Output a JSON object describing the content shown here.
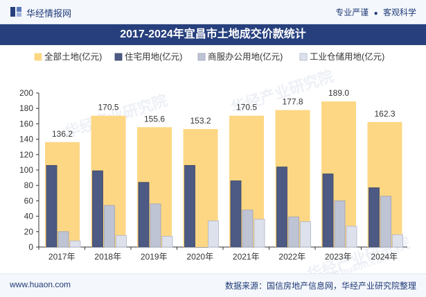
{
  "header": {
    "brand": "华经情报网",
    "tags": [
      "专业严谨",
      "客观科学"
    ]
  },
  "footer": {
    "website": "www.huaon.com",
    "source": "数据来源：国信房地产信息网，华经产业研究院整理"
  },
  "watermark": {
    "text": "华经产业研究院",
    "url": "www.huaon.com"
  },
  "colors": {
    "brand_blue": "#27407d",
    "total": "#fdd784",
    "residential": "#4d5a83",
    "commercial": "#bfc4d5",
    "industrial": "#dde1ec"
  },
  "chart_data": {
    "type": "bar",
    "title": "2017-2024年宜昌市土地成交价款统计",
    "categories": [
      "2017年",
      "2018年",
      "2019年",
      "2020年",
      "2021年",
      "2022年",
      "2023年",
      "2024年"
    ],
    "series": [
      {
        "name": "全部土地(亿元)",
        "values": [
          136.2,
          170.5,
          155.6,
          153.2,
          170.5,
          177.8,
          189.0,
          162.3
        ],
        "labels": [
          "136.2",
          "170.5",
          "155.6",
          "153.2",
          "170.5",
          "177.8",
          "189.0",
          "162.3"
        ]
      },
      {
        "name": "住宅用地(亿元)",
        "values": [
          106,
          99,
          84,
          106,
          86,
          104,
          95,
          77
        ]
      },
      {
        "name": "商服办公用地(亿元)",
        "values": [
          20,
          54,
          56,
          0,
          48,
          39,
          60,
          66
        ]
      },
      {
        "name": "工业仓储用地(亿元)",
        "values": [
          8,
          15,
          14,
          34,
          36,
          33,
          27,
          16
        ]
      }
    ],
    "ylim": [
      0,
      200
    ],
    "yticks": [
      "0",
      "20",
      "40",
      "60",
      "80",
      "100",
      "120",
      "140",
      "160",
      "180",
      "200"
    ],
    "legend_position": "top",
    "grid": false
  }
}
